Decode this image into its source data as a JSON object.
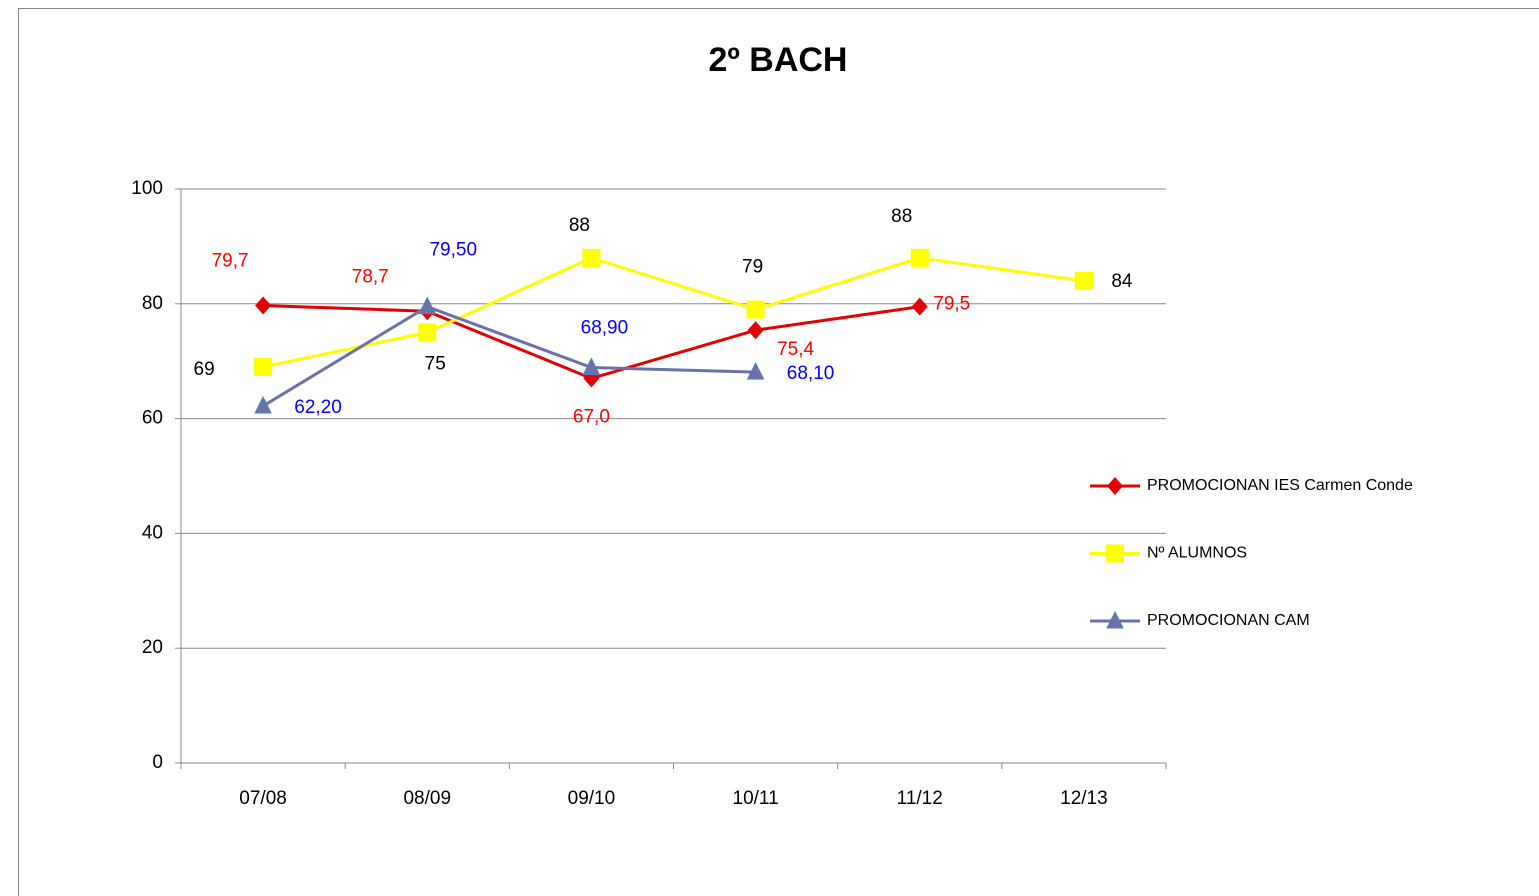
{
  "chart_data": {
    "type": "line",
    "title": "2º BACH",
    "categories": [
      "07/08",
      "08/09",
      "09/10",
      "10/11",
      "11/12",
      "12/13"
    ],
    "series": [
      {
        "name": "PROMOCIONAN IES Carmen Conde",
        "color": "#e00000",
        "marker": "diamond",
        "label_color": "#ff0000",
        "values": [
          79.7,
          78.7,
          67.0,
          75.4,
          79.5,
          null
        ],
        "value_labels": [
          "79,7",
          "78,7",
          "67,0",
          "75,4",
          "79,5",
          null
        ]
      },
      {
        "name": "Nº ALUMNOS",
        "color": "#ffff00",
        "marker": "square",
        "label_color": "#000000",
        "values": [
          69,
          75,
          88,
          79,
          88,
          84
        ]
      },
      {
        "name": "PROMOCIONAN CAM",
        "color": "#6b70a6",
        "marker": "triangle",
        "label_color": "#0000ff",
        "values": [
          62.2,
          79.5,
          68.9,
          68.1,
          null,
          null
        ],
        "value_labels": [
          "62,20",
          "79,50",
          "68,90",
          "68,10",
          null,
          null
        ]
      }
    ],
    "ylim": [
      0,
      100
    ],
    "yticks": [
      0,
      20,
      40,
      60,
      80,
      100
    ],
    "grid": true,
    "legend": "right"
  }
}
